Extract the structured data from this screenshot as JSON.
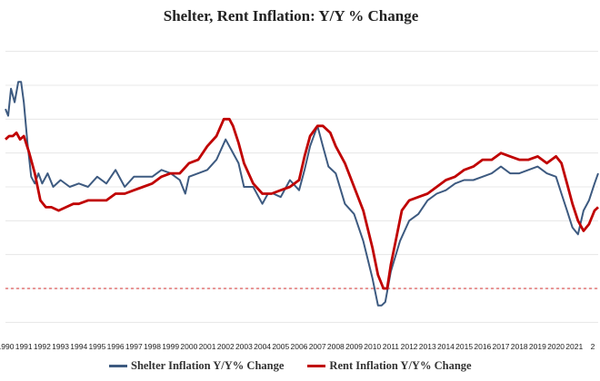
{
  "chart_data": {
    "type": "line",
    "title": "Shelter, Rent Inflation: Y/Y % Change",
    "xlabel": "",
    "ylabel": "",
    "xlim": [
      1990.0,
      2022.3
    ],
    "ylim": [
      -1.5,
      7.5
    ],
    "grid": true,
    "legend_position": "bottom",
    "x_ticks": [
      "1990",
      "1991",
      "1992",
      "1993",
      "1994",
      "1995",
      "1996",
      "1997",
      "1998",
      "1999",
      "2000",
      "2001",
      "2002",
      "2003",
      "2004",
      "2005",
      "2006",
      "2007",
      "2008",
      "2009",
      "2010",
      "2011",
      "2012",
      "2013",
      "2014",
      "2015",
      "2016",
      "2017",
      "2018",
      "2019",
      "2020",
      "2021",
      "2"
    ],
    "reference_line": {
      "value": 0,
      "color": "#d32f2f",
      "style": "dashed"
    },
    "series": [
      {
        "name": "Shelter Inflation Y/Y% Change",
        "color": "#3d5a80",
        "x": [
          1990.0,
          1990.15,
          1990.3,
          1990.5,
          1990.7,
          1990.85,
          1991.0,
          1991.2,
          1991.4,
          1991.6,
          1991.8,
          1992.0,
          1992.3,
          1992.6,
          1993.0,
          1993.5,
          1994.0,
          1994.5,
          1995.0,
          1995.5,
          1996.0,
          1996.5,
          1997.0,
          1997.5,
          1998.0,
          1998.5,
          1999.0,
          1999.5,
          1999.8,
          2000.0,
          2000.5,
          2001.0,
          2001.5,
          2002.0,
          2002.3,
          2002.7,
          2003.0,
          2003.5,
          2004.0,
          2004.3,
          2004.6,
          2005.0,
          2005.5,
          2006.0,
          2006.3,
          2006.6,
          2007.0,
          2007.3,
          2007.6,
          2008.0,
          2008.5,
          2009.0,
          2009.5,
          2010.0,
          2010.3,
          2010.5,
          2010.7,
          2011.0,
          2011.5,
          2012.0,
          2012.5,
          2013.0,
          2013.5,
          2014.0,
          2014.5,
          2015.0,
          2015.5,
          2016.0,
          2016.5,
          2017.0,
          2017.5,
          2018.0,
          2018.5,
          2019.0,
          2019.5,
          2020.0,
          2020.3,
          2020.6,
          2020.9,
          2021.2,
          2021.5,
          2021.8,
          2022.1,
          2022.3
        ],
        "y": [
          5.3,
          5.1,
          5.9,
          5.5,
          6.1,
          6.1,
          5.5,
          4.3,
          3.3,
          3.1,
          3.4,
          3.1,
          3.4,
          3.0,
          3.2,
          3.0,
          3.1,
          3.0,
          3.3,
          3.1,
          3.5,
          3.0,
          3.3,
          3.3,
          3.3,
          3.5,
          3.4,
          3.2,
          2.8,
          3.3,
          3.4,
          3.5,
          3.8,
          4.4,
          4.1,
          3.7,
          3.0,
          3.0,
          2.5,
          2.8,
          2.8,
          2.7,
          3.2,
          2.9,
          3.5,
          4.2,
          4.8,
          4.2,
          3.6,
          3.4,
          2.5,
          2.2,
          1.4,
          0.3,
          -0.5,
          -0.5,
          -0.4,
          0.5,
          1.4,
          2.0,
          2.2,
          2.6,
          2.8,
          2.9,
          3.1,
          3.2,
          3.2,
          3.3,
          3.4,
          3.6,
          3.4,
          3.4,
          3.5,
          3.6,
          3.4,
          3.3,
          2.8,
          2.3,
          1.8,
          1.6,
          2.3,
          2.6,
          3.1,
          3.4
        ]
      },
      {
        "name": "Rent Inflation Y/Y% Change",
        "color": "#c00000",
        "x": [
          1990.0,
          1990.2,
          1990.4,
          1990.6,
          1990.8,
          1991.0,
          1991.3,
          1991.6,
          1991.9,
          1992.2,
          1992.5,
          1992.9,
          1993.3,
          1993.7,
          1994.0,
          1994.5,
          1995.0,
          1995.5,
          1996.0,
          1996.5,
          1997.0,
          1997.5,
          1998.0,
          1998.5,
          1999.0,
          1999.5,
          2000.0,
          2000.5,
          2001.0,
          2001.5,
          2001.9,
          2002.2,
          2002.4,
          2002.7,
          2003.0,
          2003.5,
          2004.0,
          2004.5,
          2005.0,
          2005.5,
          2006.0,
          2006.3,
          2006.6,
          2007.0,
          2007.3,
          2007.7,
          2008.0,
          2008.5,
          2009.0,
          2009.5,
          2010.0,
          2010.3,
          2010.6,
          2010.8,
          2011.0,
          2011.3,
          2011.6,
          2012.0,
          2012.5,
          2013.0,
          2013.5,
          2014.0,
          2014.5,
          2015.0,
          2015.5,
          2016.0,
          2016.5,
          2017.0,
          2017.5,
          2018.0,
          2018.5,
          2019.0,
          2019.5,
          2020.0,
          2020.3,
          2020.6,
          2020.9,
          2021.2,
          2021.5,
          2021.8,
          2022.1,
          2022.3
        ],
        "y": [
          4.4,
          4.5,
          4.5,
          4.6,
          4.4,
          4.5,
          4.0,
          3.4,
          2.6,
          2.4,
          2.4,
          2.3,
          2.4,
          2.5,
          2.5,
          2.6,
          2.6,
          2.6,
          2.8,
          2.8,
          2.9,
          3.0,
          3.1,
          3.3,
          3.4,
          3.4,
          3.7,
          3.8,
          4.2,
          4.5,
          5.0,
          5.0,
          4.8,
          4.3,
          3.7,
          3.1,
          2.8,
          2.8,
          2.9,
          3.0,
          3.2,
          3.9,
          4.5,
          4.8,
          4.8,
          4.6,
          4.2,
          3.7,
          3.0,
          2.3,
          1.2,
          0.4,
          0.0,
          0.0,
          0.7,
          1.5,
          2.3,
          2.6,
          2.7,
          2.8,
          3.0,
          3.2,
          3.3,
          3.5,
          3.6,
          3.8,
          3.8,
          4.0,
          3.9,
          3.8,
          3.8,
          3.9,
          3.7,
          3.9,
          3.7,
          3.1,
          2.5,
          2.0,
          1.7,
          1.9,
          2.3,
          2.4
        ]
      }
    ]
  }
}
